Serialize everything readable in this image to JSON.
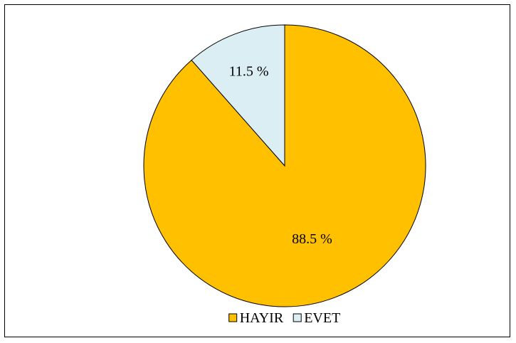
{
  "chart_data": {
    "type": "pie",
    "title": "",
    "start_angle_deg": 0,
    "direction": "clockwise",
    "legend_position": "bottom",
    "slices": [
      {
        "label": "HAYIR",
        "value": 88.5,
        "display": "88.5  %",
        "color": "#FFC000"
      },
      {
        "label": "EVET",
        "value": 11.5,
        "display": "11.5  %",
        "color": "#DAEEF3"
      }
    ]
  }
}
